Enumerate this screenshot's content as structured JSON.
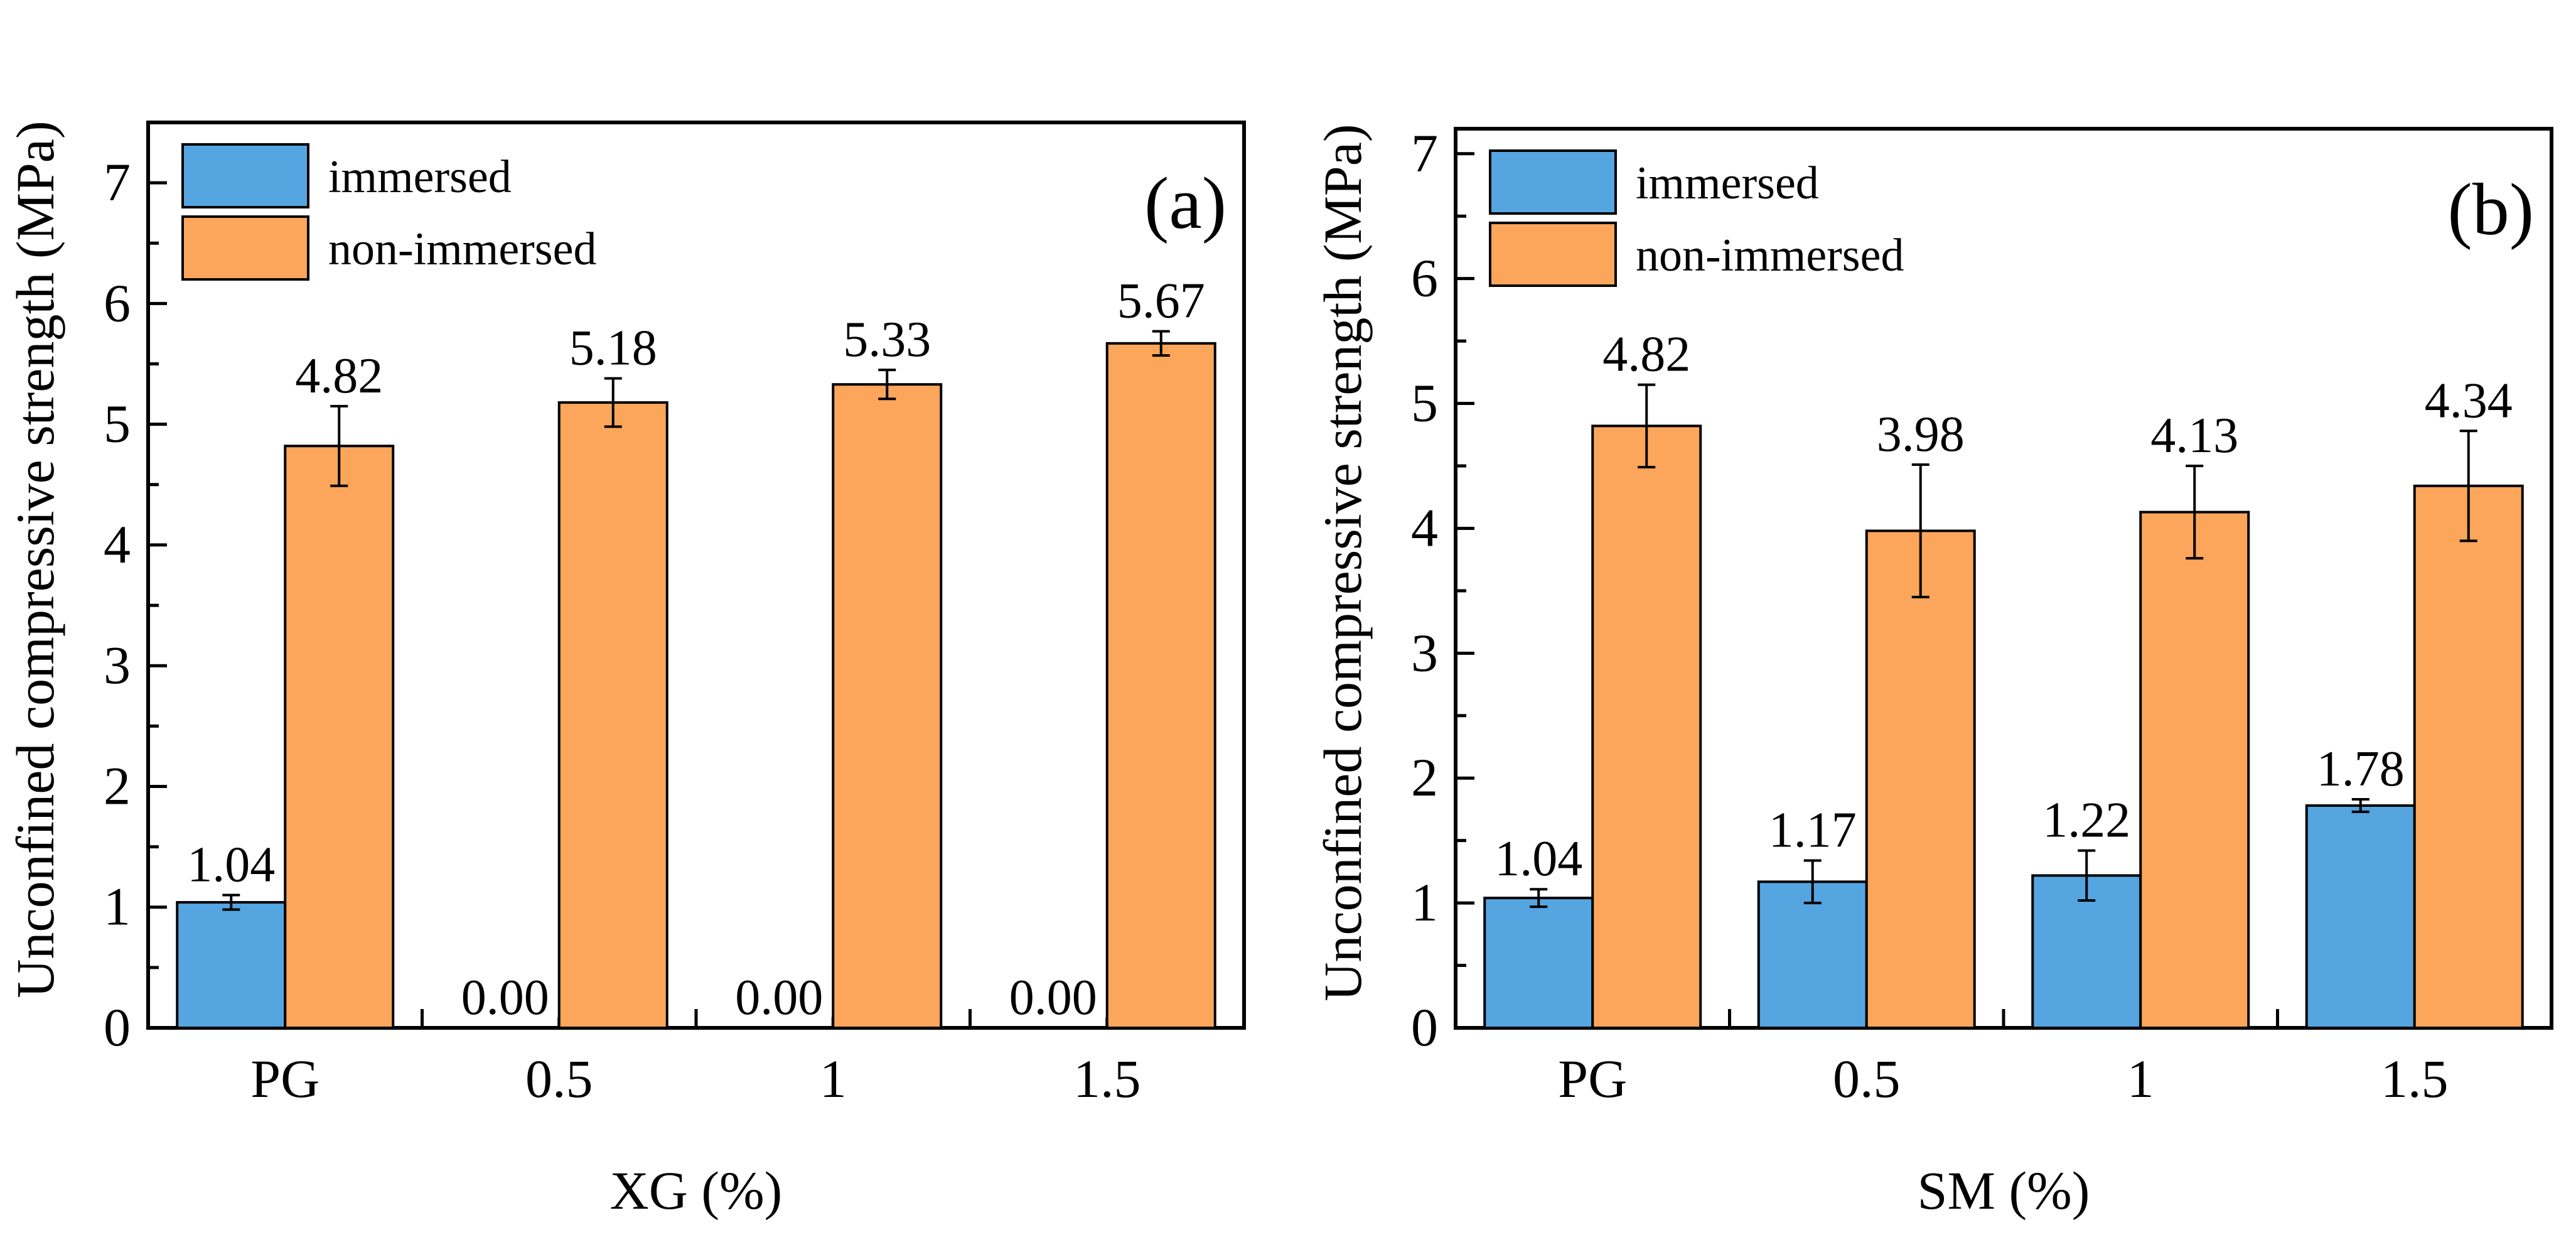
{
  "colors": {
    "immersed": "#55A5E1",
    "non_immersed": "#FBA65A",
    "axis": "#000000"
  },
  "chart_data": [
    {
      "type": "bar",
      "panel_label": "(a)",
      "title": "",
      "xlabel": "XG (%)",
      "ylabel": "Unconfined compressive strength (MPa)",
      "categories": [
        "PG",
        "0.5",
        "1",
        "1.5"
      ],
      "ylim": [
        0,
        7.5
      ],
      "yticks": [
        0,
        1,
        2,
        3,
        4,
        5,
        6,
        7
      ],
      "legend_position": "top-left",
      "series": [
        {
          "name": "immersed",
          "values": [
            1.04,
            0.0,
            0.0,
            0.0
          ],
          "errors": [
            0.06,
            0,
            0,
            0
          ],
          "labels": [
            "1.04",
            "0.00",
            "0.00",
            "0.00"
          ]
        },
        {
          "name": "non-immersed",
          "values": [
            4.82,
            5.18,
            5.33,
            5.67
          ],
          "errors": [
            0.33,
            0.2,
            0.12,
            0.1
          ],
          "labels": [
            "4.82",
            "5.18",
            "5.33",
            "5.67"
          ]
        }
      ]
    },
    {
      "type": "bar",
      "panel_label": "(b)",
      "title": "",
      "xlabel": "SM (%)",
      "ylabel": "Unconfined compressive strength (MPa)",
      "categories": [
        "PG",
        "0.5",
        "1",
        "1.5"
      ],
      "ylim": [
        0,
        7.2
      ],
      "yticks": [
        0,
        1,
        2,
        3,
        4,
        5,
        6,
        7
      ],
      "legend_position": "top-left",
      "series": [
        {
          "name": "immersed",
          "values": [
            1.04,
            1.17,
            1.22,
            1.78
          ],
          "errors": [
            0.07,
            0.17,
            0.2,
            0.05
          ],
          "labels": [
            "1.04",
            "1.17",
            "1.22",
            "1.78"
          ]
        },
        {
          "name": "non-immersed",
          "values": [
            4.82,
            3.98,
            4.13,
            4.34
          ],
          "errors": [
            0.33,
            0.53,
            0.37,
            0.44
          ],
          "labels": [
            "4.82",
            "3.98",
            "4.13",
            "4.34"
          ]
        }
      ]
    }
  ]
}
